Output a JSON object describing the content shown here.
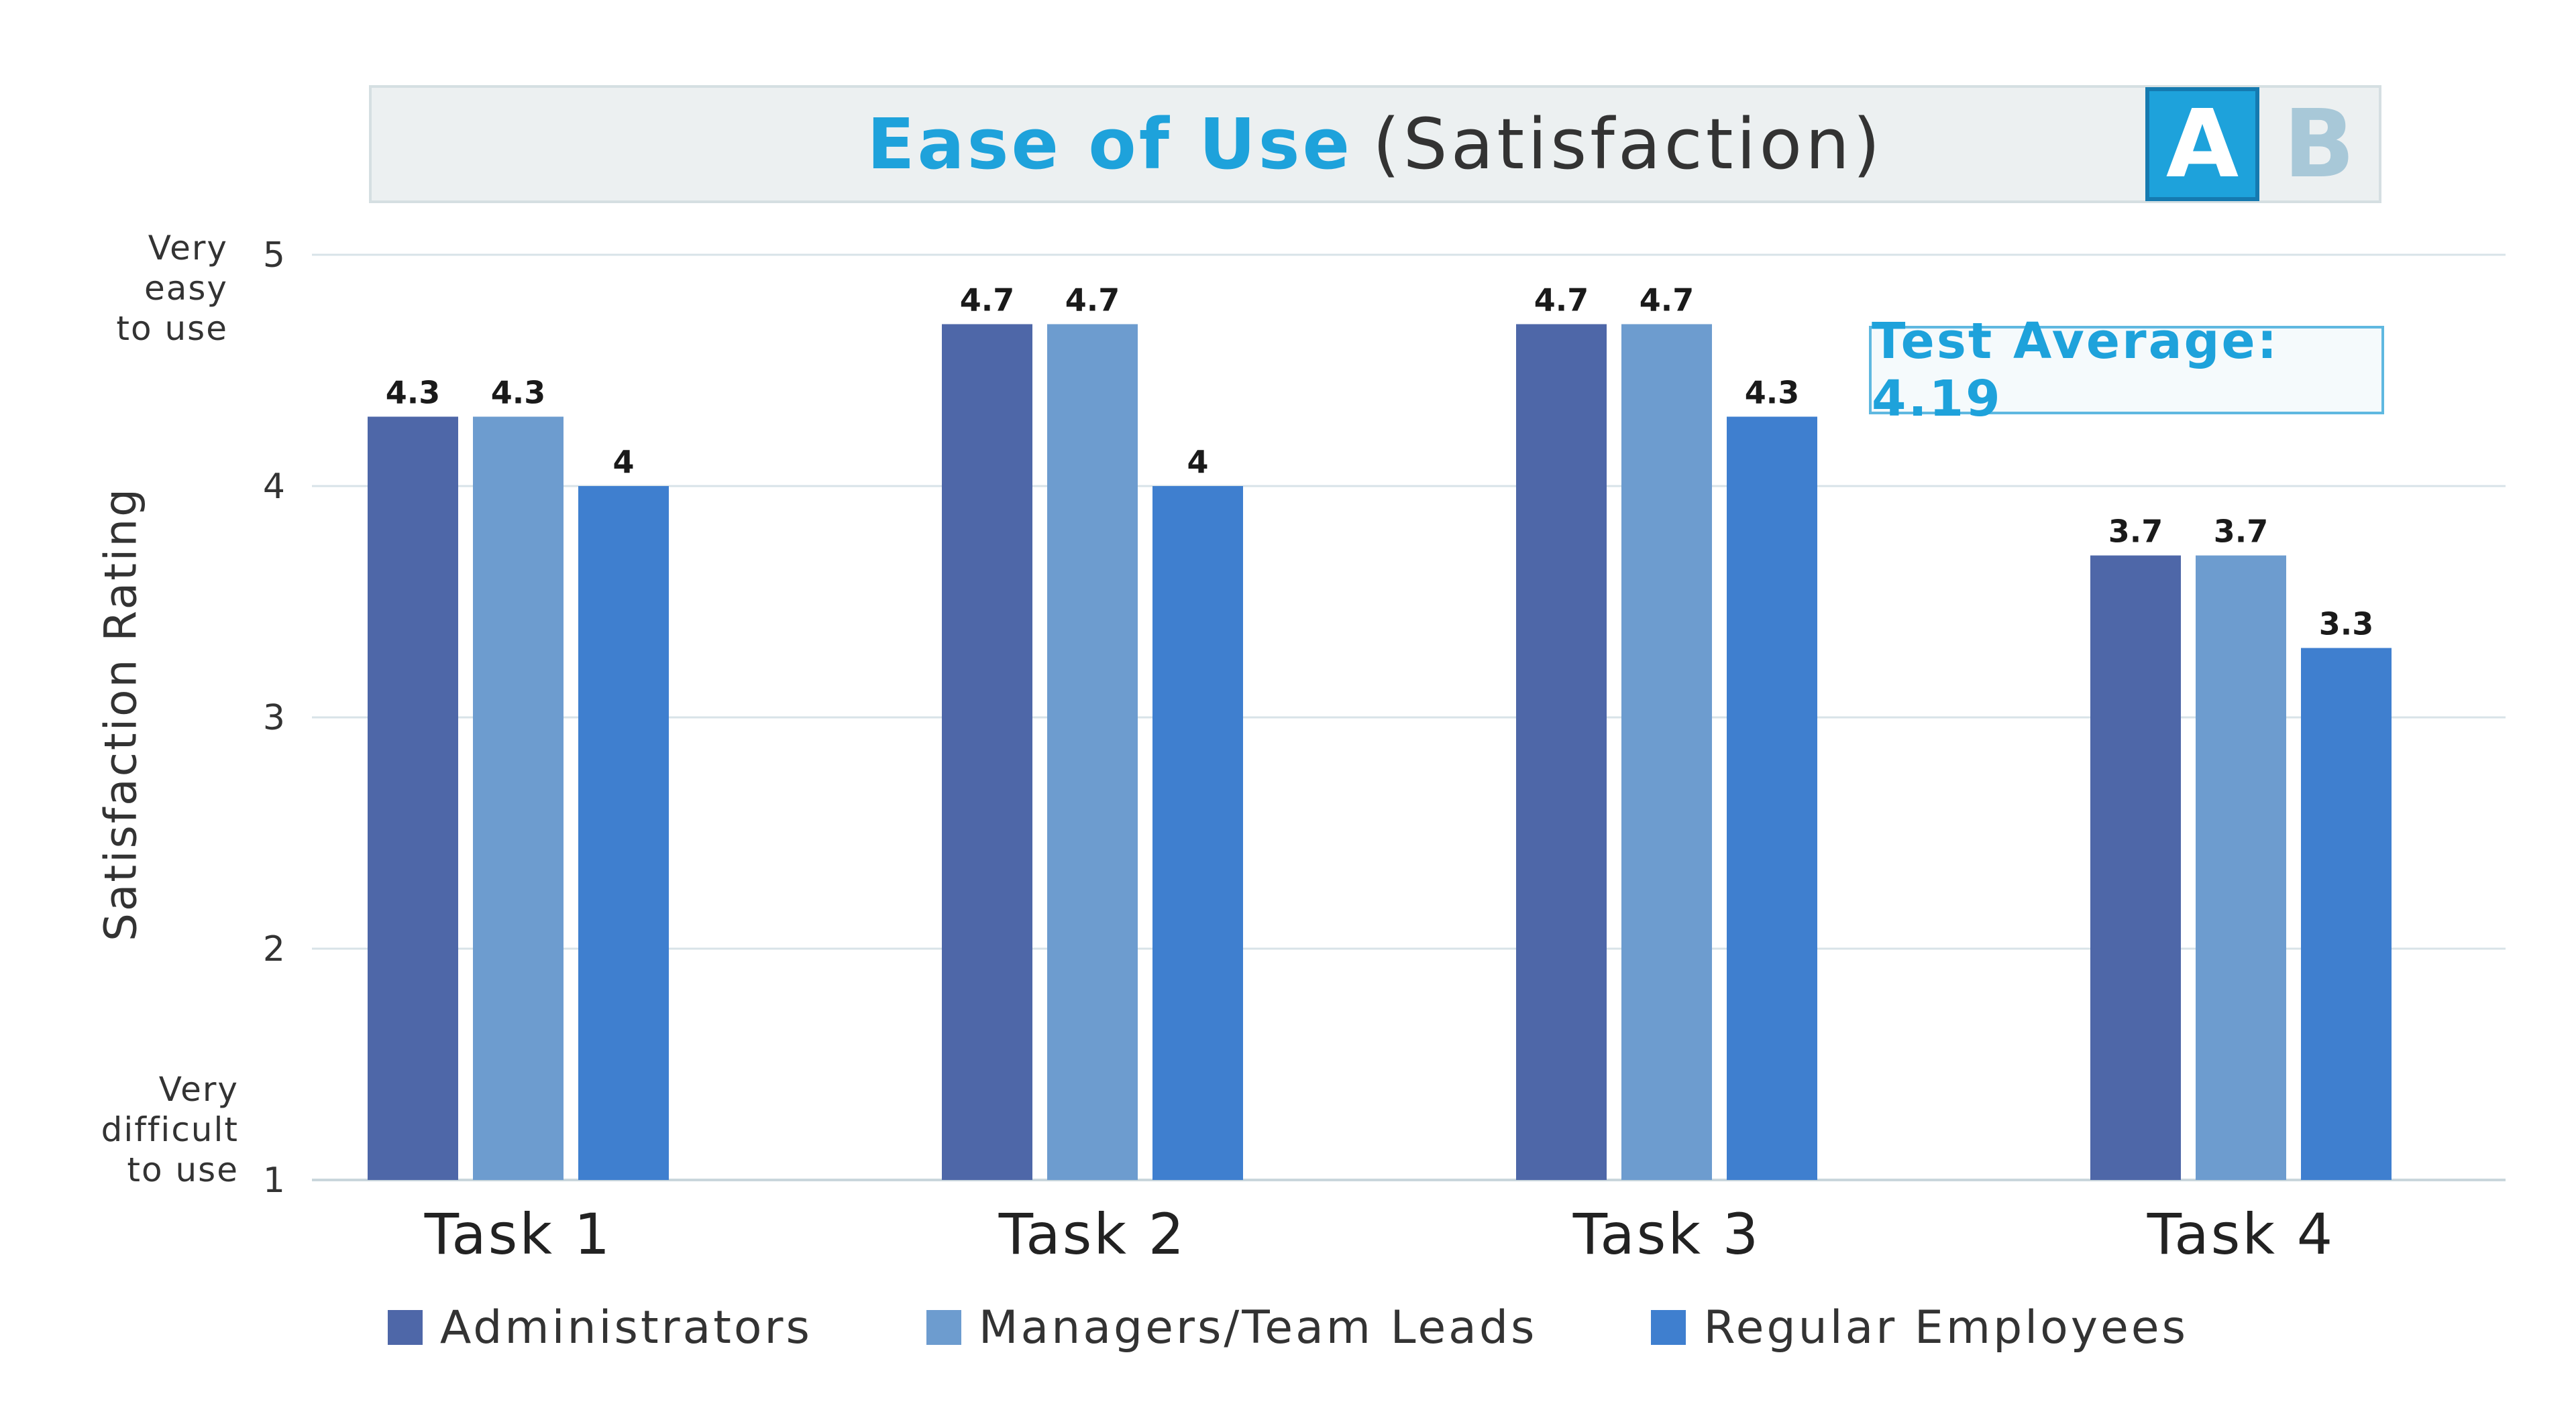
{
  "header": {
    "title_bold": "Ease of Use",
    "title_rest": "(Satisfaction)",
    "tab_a": "A",
    "tab_b": "B"
  },
  "annotation": {
    "test_average": "Test Average: 4.19"
  },
  "y_annotations": {
    "top": [
      "Very",
      "easy",
      "to use"
    ],
    "bottom": [
      "Very",
      "difficult",
      "to use"
    ]
  },
  "colors": {
    "title_accent": "#1ea2db",
    "administrators": "#4e67a8",
    "managers": "#6d9ccf",
    "employees": "#3f7fcf"
  },
  "chart_data": {
    "type": "bar",
    "title": "Ease of Use (Satisfaction)",
    "xlabel": "",
    "ylabel": "Satisfaction Rating",
    "ylim": [
      1,
      5
    ],
    "yticks": [
      1,
      2,
      3,
      4,
      5
    ],
    "grid": true,
    "legend_position": "bottom",
    "categories": [
      "Task 1",
      "Task 2",
      "Task 3",
      "Task 4"
    ],
    "series": [
      {
        "name": "Administrators",
        "values": [
          4.3,
          4.7,
          4.7,
          3.7
        ],
        "labels": [
          "4.3",
          "4.7",
          "4.7",
          "3.7"
        ],
        "color": "#4e67a8"
      },
      {
        "name": "Managers/Team Leads",
        "values": [
          4.3,
          4.7,
          4.7,
          3.7
        ],
        "labels": [
          "4.3",
          "4.7",
          "4.7",
          "3.7"
        ],
        "color": "#6d9ccf"
      },
      {
        "name": "Regular Employees",
        "values": [
          4.0,
          4.0,
          4.3,
          3.3
        ],
        "labels": [
          "4",
          "4",
          "4.3",
          "3.3"
        ],
        "color": "#3f7fcf"
      }
    ]
  }
}
